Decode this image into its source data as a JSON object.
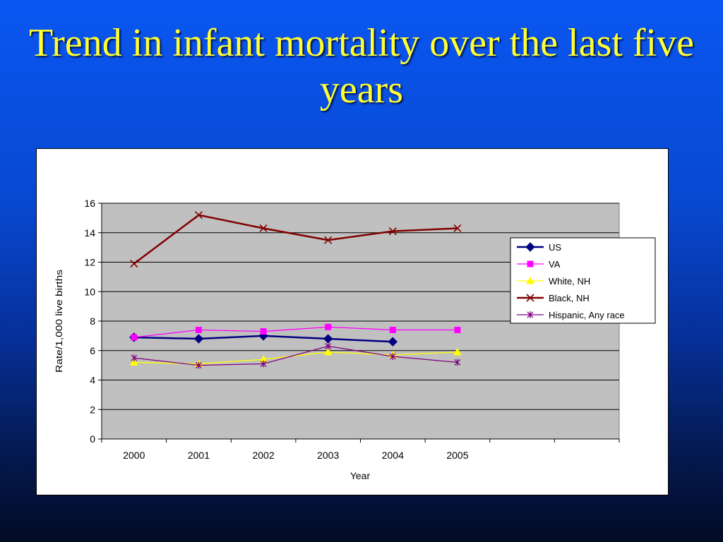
{
  "slide": {
    "title": "Trend in infant mortality over the last five years"
  },
  "colors": {
    "background_top": "#0a57f2",
    "background_bottom": "#020b24",
    "title": "#ffff33",
    "plot_area": "#c0c0c0"
  },
  "chart_data": {
    "type": "line",
    "title": "",
    "xlabel": "Year",
    "ylabel": "Rate/1,000 live births",
    "ylim": [
      0,
      16
    ],
    "yticks": [
      0,
      2,
      4,
      6,
      8,
      10,
      12,
      14,
      16
    ],
    "categories": [
      "2000",
      "2001",
      "2002",
      "2003",
      "2004",
      "2005",
      "",
      ""
    ],
    "grid": true,
    "legend_position": "right",
    "series": [
      {
        "name": "US",
        "color": "#000080",
        "marker": "diamond",
        "values": [
          6.9,
          6.8,
          7.0,
          6.8,
          6.6,
          null,
          null,
          null
        ]
      },
      {
        "name": "VA",
        "color": "#ff00ff",
        "marker": "square",
        "values": [
          6.9,
          7.4,
          7.3,
          7.6,
          7.4,
          7.4,
          null,
          null
        ]
      },
      {
        "name": "White, NH",
        "color": "#ffff00",
        "marker": "triangle",
        "values": [
          5.2,
          5.1,
          5.4,
          5.9,
          5.7,
          5.9,
          null,
          null
        ]
      },
      {
        "name": "Black, NH",
        "color": "#800000",
        "marker": "x",
        "values": [
          11.9,
          15.2,
          14.3,
          13.5,
          14.1,
          14.3,
          null,
          null
        ]
      },
      {
        "name": "Hispanic, Any race",
        "color": "#800080",
        "marker": "star",
        "values": [
          5.5,
          5.0,
          5.1,
          6.3,
          5.6,
          5.2,
          null,
          null
        ]
      }
    ]
  }
}
